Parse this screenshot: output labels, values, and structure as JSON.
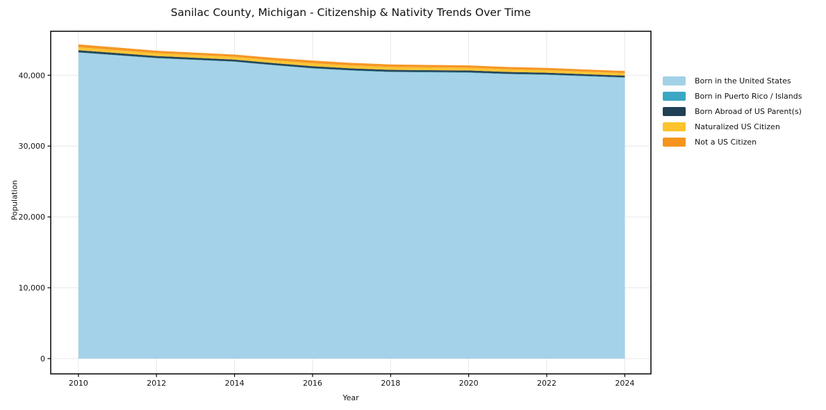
{
  "page": {
    "background": "#ffffff"
  },
  "chart_data": {
    "type": "area",
    "stacked": true,
    "title": "Sanilac County, Michigan - Citizenship & Nativity Trends Over Time",
    "xlabel": "Year",
    "ylabel": "Population",
    "x": [
      2010,
      2011,
      2012,
      2013,
      2014,
      2015,
      2016,
      2017,
      2018,
      2019,
      2020,
      2021,
      2022,
      2023,
      2024
    ],
    "series": [
      {
        "name": "Born in the United States",
        "color": "#a1d1e7",
        "values": [
          43200,
          42800,
          42400,
          42150,
          41900,
          41400,
          40950,
          40650,
          40450,
          40400,
          40350,
          40150,
          40050,
          39850,
          39650
        ]
      },
      {
        "name": "Born in Puerto Rico / Islands",
        "color": "#3ba7c3",
        "values": [
          40,
          40,
          40,
          45,
          45,
          50,
          50,
          50,
          50,
          55,
          55,
          55,
          55,
          50,
          50
        ]
      },
      {
        "name": "Born Abroad of US Parent(s)",
        "color": "#1f4055",
        "values": [
          300,
          290,
          280,
          275,
          270,
          265,
          280,
          270,
          265,
          260,
          270,
          260,
          255,
          250,
          250
        ]
      },
      {
        "name": "Naturalized US Citizen",
        "color": "#fcc32d",
        "values": [
          420,
          410,
          400,
          395,
          390,
          400,
          420,
          410,
          400,
          390,
          380,
          370,
          360,
          355,
          350
        ]
      },
      {
        "name": "Not a US Citizen",
        "color": "#f6941e",
        "values": [
          400,
          380,
          340,
          330,
          320,
          340,
          380,
          370,
          360,
          350,
          340,
          330,
          320,
          310,
          300
        ]
      }
    ],
    "x_ticks": [
      {
        "value": 2010,
        "label": "2010"
      },
      {
        "value": 2012,
        "label": "2012"
      },
      {
        "value": 2014,
        "label": "2014"
      },
      {
        "value": 2016,
        "label": "2016"
      },
      {
        "value": 2018,
        "label": "2018"
      },
      {
        "value": 2020,
        "label": "2020"
      },
      {
        "value": 2022,
        "label": "2022"
      },
      {
        "value": 2024,
        "label": "2024"
      }
    ],
    "y_ticks": [
      {
        "value": 0,
        "label": "0"
      },
      {
        "value": 10000,
        "label": "10,000"
      },
      {
        "value": 20000,
        "label": "20,000"
      },
      {
        "value": 30000,
        "label": "30,000"
      },
      {
        "value": 40000,
        "label": "40,000"
      }
    ],
    "xlim": [
      2009.29,
      2024.67
    ],
    "ylim": [
      -2160,
      46210
    ],
    "grid": true,
    "grid_color": "#e7e7e7",
    "spine_color": "#000000",
    "text_color": "#111111",
    "legend_position": "right-outside"
  }
}
